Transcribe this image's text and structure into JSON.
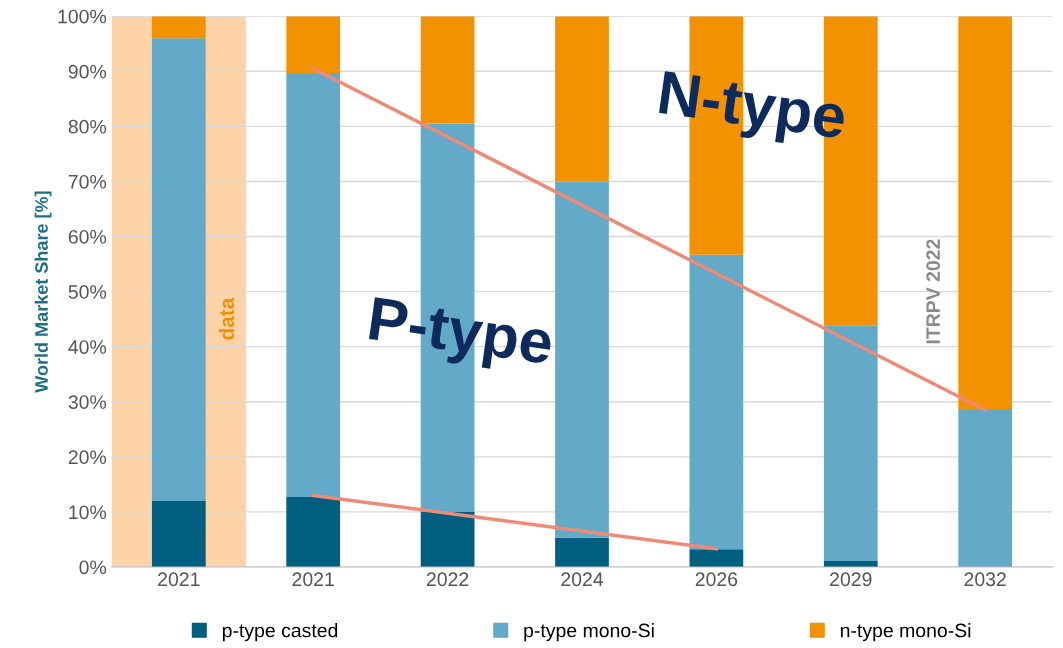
{
  "chart_data": {
    "type": "bar",
    "stacked": true,
    "ylabel": "World Market Share [%]",
    "categories": [
      "2021",
      "2021",
      "2022",
      "2024",
      "2026",
      "2029",
      "2032"
    ],
    "series": [
      {
        "name": "p-type casted",
        "color": "#005f7f",
        "values": [
          12,
          12.7,
          10,
          5.3,
          3.2,
          1.1,
          0
        ]
      },
      {
        "name": "p-type mono-Si",
        "color": "#63aac8",
        "values": [
          84,
          77,
          70.5,
          64.7,
          53.5,
          42.8,
          28.7
        ]
      },
      {
        "name": "n-type mono-Si",
        "color": "#f39200",
        "values": [
          4,
          10.3,
          19.5,
          30,
          43.3,
          56.1,
          71.3
        ]
      },
      {
        "type": "line",
        "color": "#ee8a78",
        "values": [
          null,
          90.5,
          null,
          null,
          null,
          null,
          28.5
        ]
      },
      {
        "type": "line",
        "color": "#ee8a78",
        "values": [
          null,
          13,
          null,
          null,
          3.3,
          null,
          null
        ]
      }
    ],
    "ylim": [
      0,
      100
    ],
    "yticks": [
      {
        "value": 0,
        "label": "0%"
      },
      {
        "value": 10,
        "label": "10%"
      },
      {
        "value": 20,
        "label": "20%"
      },
      {
        "value": 30,
        "label": "30%"
      },
      {
        "value": 40,
        "label": "40%"
      },
      {
        "value": 50,
        "label": "50%"
      },
      {
        "value": 60,
        "label": "60%"
      },
      {
        "value": 70,
        "label": "70%"
      },
      {
        "value": 80,
        "label": "80%"
      },
      {
        "value": 90,
        "label": "90%"
      },
      {
        "value": 100,
        "label": "100%"
      }
    ],
    "bands": [
      {
        "axis": "x",
        "from": "2021",
        "to": "2021",
        "label": "data",
        "color": "#fdd3a7"
      }
    ],
    "annotations": [
      "N-type",
      "P-type",
      "ITRPV 2022"
    ],
    "grid": "y",
    "legend": "bottom"
  }
}
